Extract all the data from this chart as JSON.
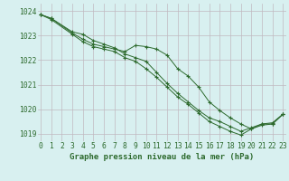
{
  "line1_x": [
    0,
    1,
    3,
    4,
    5,
    6,
    7,
    8,
    9,
    10,
    11,
    12,
    13,
    14,
    15,
    16,
    17,
    18,
    19,
    20,
    21,
    22,
    23
  ],
  "line1_y": [
    1023.85,
    1023.7,
    1023.1,
    1022.85,
    1022.65,
    1022.55,
    1022.45,
    1022.35,
    1022.6,
    1022.55,
    1022.45,
    1022.2,
    1021.65,
    1021.35,
    1020.9,
    1020.3,
    1019.95,
    1019.65,
    1019.4,
    1019.2,
    1019.4,
    1019.4,
    1019.8
  ],
  "line2_x": [
    0,
    1,
    3,
    4,
    5,
    6,
    7,
    8,
    9,
    10,
    11,
    12,
    13,
    14,
    15,
    16,
    17,
    18,
    19,
    20,
    21,
    22,
    23
  ],
  "line2_y": [
    1023.85,
    1023.7,
    1023.15,
    1023.05,
    1022.8,
    1022.65,
    1022.5,
    1022.25,
    1022.1,
    1021.95,
    1021.5,
    1021.05,
    1020.65,
    1020.3,
    1019.95,
    1019.65,
    1019.5,
    1019.3,
    1019.1,
    1019.25,
    1019.4,
    1019.45,
    1019.8
  ],
  "line3_x": [
    0,
    1,
    3,
    4,
    5,
    6,
    7,
    8,
    9,
    10,
    11,
    12,
    13,
    14,
    15,
    16,
    17,
    18,
    19,
    20,
    21,
    22,
    23
  ],
  "line3_y": [
    1023.85,
    1023.65,
    1023.05,
    1022.75,
    1022.55,
    1022.45,
    1022.35,
    1022.1,
    1021.95,
    1021.65,
    1021.3,
    1020.9,
    1020.5,
    1020.2,
    1019.85,
    1019.5,
    1019.3,
    1019.1,
    1018.95,
    1019.2,
    1019.35,
    1019.4,
    1019.8
  ],
  "line_color": "#2d6a2d",
  "bg_color": "#d8f0f0",
  "grid_color": "#c0b8c0",
  "xlabel": "Graphe pression niveau de la mer (hPa)",
  "ylim": [
    1018.7,
    1024.3
  ],
  "yticks": [
    1019,
    1020,
    1021,
    1022,
    1023,
    1024
  ],
  "xticks": [
    0,
    1,
    2,
    3,
    4,
    5,
    6,
    7,
    8,
    9,
    10,
    11,
    12,
    13,
    14,
    15,
    16,
    17,
    18,
    19,
    20,
    21,
    22,
    23
  ],
  "xlabel_fontsize": 6.5,
  "tick_fontsize": 5.8,
  "xlim": [
    -0.3,
    23.3
  ]
}
